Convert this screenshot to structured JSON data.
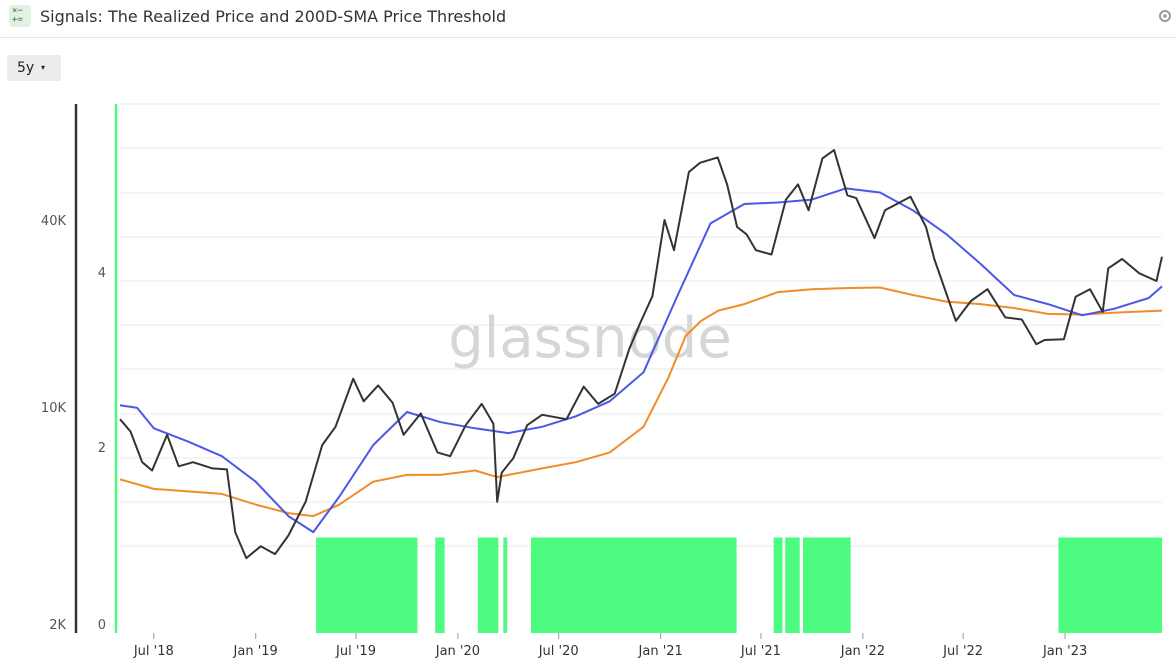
{
  "header": {
    "title": "Signals: The Realized Price and 200D-SMA Price Threshold",
    "app_icon": "calculator-icon",
    "corner_icon": "settings-icon"
  },
  "controls": {
    "range_label": "5y",
    "range_caret": "▾"
  },
  "colors": {
    "price": "#333333",
    "sma200": "#4a58e8",
    "realized": "#f28c28",
    "signal": "#4dfb80",
    "axis_left": "#333333",
    "axis_signal": "#4dfb80",
    "grid": "#e8e8e8"
  },
  "watermark": "glassnode",
  "chart_data": {
    "type": "line",
    "title": "Signals: The Realized Price and 200D-SMA Price Threshold",
    "y_price": {
      "scale": "log",
      "ticks": [
        "2K",
        "10K",
        "40K"
      ],
      "tick_values": [
        2000,
        10000,
        40000
      ]
    },
    "y_signal": {
      "range": [
        0,
        5
      ],
      "ticks": [
        "0",
        "2",
        "4"
      ],
      "tick_values": [
        0,
        2,
        4
      ]
    },
    "x_ticks": [
      "Jul '18",
      "Jan '19",
      "Jul '19",
      "Jan '20",
      "Jul '20",
      "Jan '21",
      "Jul '21",
      "Jan '22",
      "Jul '22",
      "Jan '23"
    ],
    "x_tick_dates": [
      "2018-07-01",
      "2019-01-01",
      "2019-07-01",
      "2020-01-01",
      "2020-07-01",
      "2021-01-01",
      "2021-07-01",
      "2022-01-01",
      "2022-07-01",
      "2023-01-01"
    ],
    "grid": true,
    "legend": "none",
    "series": [
      {
        "key": "price",
        "dates": [
          "2018-05-01",
          "2018-05-20",
          "2018-06-10",
          "2018-06-28",
          "2018-07-25",
          "2018-08-15",
          "2018-09-10",
          "2018-10-15",
          "2018-11-10",
          "2018-11-25",
          "2018-12-15",
          "2019-01-10",
          "2019-02-05",
          "2019-03-01",
          "2019-04-01",
          "2019-05-01",
          "2019-05-25",
          "2019-06-26",
          "2019-07-15",
          "2019-08-10",
          "2019-09-05",
          "2019-09-25",
          "2019-10-26",
          "2019-11-25",
          "2019-12-18",
          "2020-01-15",
          "2020-02-13",
          "2020-03-05",
          "2020-03-12",
          "2020-03-20",
          "2020-04-10",
          "2020-05-05",
          "2020-06-01",
          "2020-07-15",
          "2020-08-15",
          "2020-09-10",
          "2020-10-10",
          "2020-11-05",
          "2020-11-25",
          "2020-12-17",
          "2021-01-08",
          "2021-01-25",
          "2021-02-21",
          "2021-03-13",
          "2021-04-14",
          "2021-05-01",
          "2021-05-19",
          "2021-06-05",
          "2021-06-22",
          "2021-07-20",
          "2021-08-15",
          "2021-09-06",
          "2021-09-25",
          "2021-10-20",
          "2021-11-10",
          "2021-12-04",
          "2021-12-20",
          "2022-01-22",
          "2022-02-10",
          "2022-03-28",
          "2022-04-25",
          "2022-05-10",
          "2022-06-18",
          "2022-07-15",
          "2022-08-14",
          "2022-09-15",
          "2022-10-15",
          "2022-11-10",
          "2022-11-25",
          "2022-12-30",
          "2023-01-20",
          "2023-02-15",
          "2023-03-10",
          "2023-03-20",
          "2023-04-14",
          "2023-05-15",
          "2023-06-15",
          "2023-06-25"
        ],
        "values": [
          9200,
          8400,
          6700,
          6300,
          8200,
          6500,
          6700,
          6400,
          6350,
          4000,
          3300,
          3600,
          3400,
          3900,
          5000,
          7600,
          8700,
          12400,
          10500,
          11800,
          10400,
          8200,
          9600,
          7200,
          7000,
          8800,
          10300,
          8900,
          5000,
          6200,
          6900,
          8800,
          9500,
          9200,
          11700,
          10300,
          11100,
          15400,
          18700,
          22800,
          40000,
          32000,
          57000,
          61000,
          63500,
          52000,
          38000,
          36000,
          32000,
          31000,
          46500,
          52000,
          43000,
          63000,
          67000,
          48000,
          47000,
          35000,
          43000,
          47500,
          38000,
          30000,
          19000,
          22000,
          24000,
          19500,
          19200,
          16000,
          16500,
          16600,
          22700,
          24000,
          20300,
          28000,
          30000,
          27000,
          25500,
          30500
        ]
      },
      {
        "key": "sma200",
        "dates": [
          "2018-05-01",
          "2018-06-01",
          "2018-07-01",
          "2018-09-01",
          "2018-11-01",
          "2019-01-01",
          "2019-03-01",
          "2019-04-15",
          "2019-06-01",
          "2019-08-01",
          "2019-10-01",
          "2019-12-01",
          "2020-02-01",
          "2020-04-01",
          "2020-06-01",
          "2020-08-01",
          "2020-10-01",
          "2020-12-01",
          "2021-02-01",
          "2021-04-01",
          "2021-06-01",
          "2021-08-01",
          "2021-10-01",
          "2021-12-01",
          "2022-02-01",
          "2022-04-01",
          "2022-06-01",
          "2022-08-01",
          "2022-10-01",
          "2022-12-01",
          "2023-02-01",
          "2023-04-01",
          "2023-06-01",
          "2023-06-25"
        ],
        "values": [
          10200,
          10000,
          8600,
          7800,
          7000,
          5800,
          4500,
          4000,
          5200,
          7600,
          9700,
          9000,
          8600,
          8300,
          8700,
          9400,
          10500,
          13000,
          23000,
          39000,
          45000,
          45500,
          46500,
          50500,
          49000,
          43000,
          36000,
          29000,
          23000,
          21500,
          19800,
          20800,
          22500,
          24500
        ]
      },
      {
        "key": "realized",
        "dates": [
          "2018-05-01",
          "2018-07-01",
          "2018-09-01",
          "2018-11-01",
          "2019-01-01",
          "2019-03-01",
          "2019-04-15",
          "2019-06-01",
          "2019-08-01",
          "2019-10-01",
          "2019-12-01",
          "2020-02-01",
          "2020-03-12",
          "2020-06-01",
          "2020-08-01",
          "2020-10-01",
          "2020-12-01",
          "2021-01-15",
          "2021-02-15",
          "2021-03-15",
          "2021-04-15",
          "2021-06-01",
          "2021-08-01",
          "2021-10-01",
          "2021-12-01",
          "2022-02-01",
          "2022-04-01",
          "2022-06-01",
          "2022-08-01",
          "2022-10-01",
          "2022-12-01",
          "2023-02-01",
          "2023-04-01",
          "2023-06-25"
        ],
        "values": [
          5900,
          5500,
          5400,
          5300,
          4900,
          4600,
          4500,
          4900,
          5800,
          6100,
          6100,
          6300,
          6000,
          6400,
          6700,
          7200,
          8700,
          12500,
          17000,
          19000,
          20500,
          21500,
          23500,
          24000,
          24200,
          24300,
          23000,
          21900,
          21500,
          20900,
          20000,
          19900,
          20200,
          20500
        ]
      }
    ],
    "signal_windows": [
      [
        "2019-04-20",
        "2019-10-20"
      ],
      [
        "2019-11-21",
        "2019-12-08"
      ],
      [
        "2020-02-06",
        "2020-03-14"
      ],
      [
        "2020-03-23",
        "2020-03-30"
      ],
      [
        "2020-05-12",
        "2021-05-18"
      ],
      [
        "2021-07-24",
        "2021-08-09"
      ],
      [
        "2021-08-14",
        "2021-09-09"
      ],
      [
        "2021-09-15",
        "2021-12-10"
      ],
      [
        "2022-12-20",
        "2023-06-25"
      ]
    ],
    "signal_value": 1
  }
}
